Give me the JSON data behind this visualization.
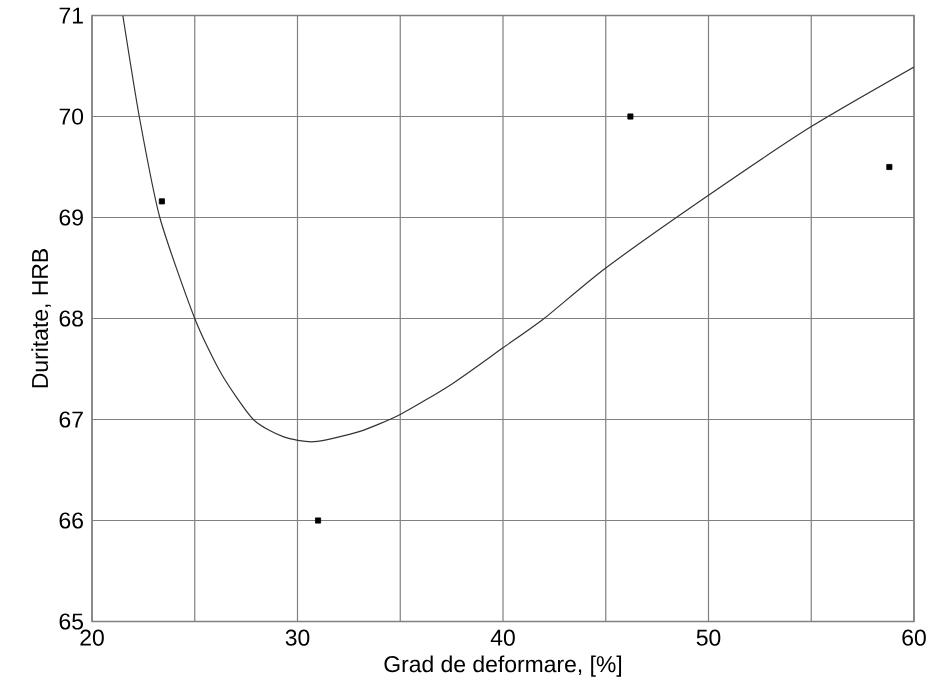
{
  "chart_data": {
    "type": "scatter",
    "xlabel": "Grad de deformare, [%]",
    "ylabel": "Duritate, HRB",
    "xlim": [
      20,
      60
    ],
    "ylim": [
      65,
      71
    ],
    "xticks": [
      20,
      {
        "value": 25,
        "label": null
      },
      30,
      {
        "value": 35,
        "label": null
      },
      40,
      {
        "value": 45,
        "label": null
      },
      50,
      {
        "value": 55,
        "label": null
      },
      60
    ],
    "yticks": [
      65,
      66,
      67,
      68,
      69,
      70,
      71
    ],
    "grid": true,
    "series": [
      {
        "marker": "square",
        "color": "#000000",
        "x": [
          23.4,
          31.0,
          46.2,
          58.8
        ],
        "values": [
          69.16,
          66.0,
          70.0,
          69.5
        ]
      },
      {
        "type": "line",
        "marker": "none",
        "color": "#333333",
        "x": [
          21.5,
          22.3,
          23.3,
          25,
          26.3,
          27.85,
          29.3,
          30.8,
          33,
          35,
          37.5,
          40,
          42,
          45,
          50,
          55,
          60
        ],
        "values": [
          71,
          70,
          69,
          68,
          67.45,
          67,
          66.83,
          66.78,
          66.88,
          67.05,
          67.35,
          67.71,
          68.0,
          68.5,
          69.22,
          69.9,
          70.49
        ]
      }
    ]
  }
}
